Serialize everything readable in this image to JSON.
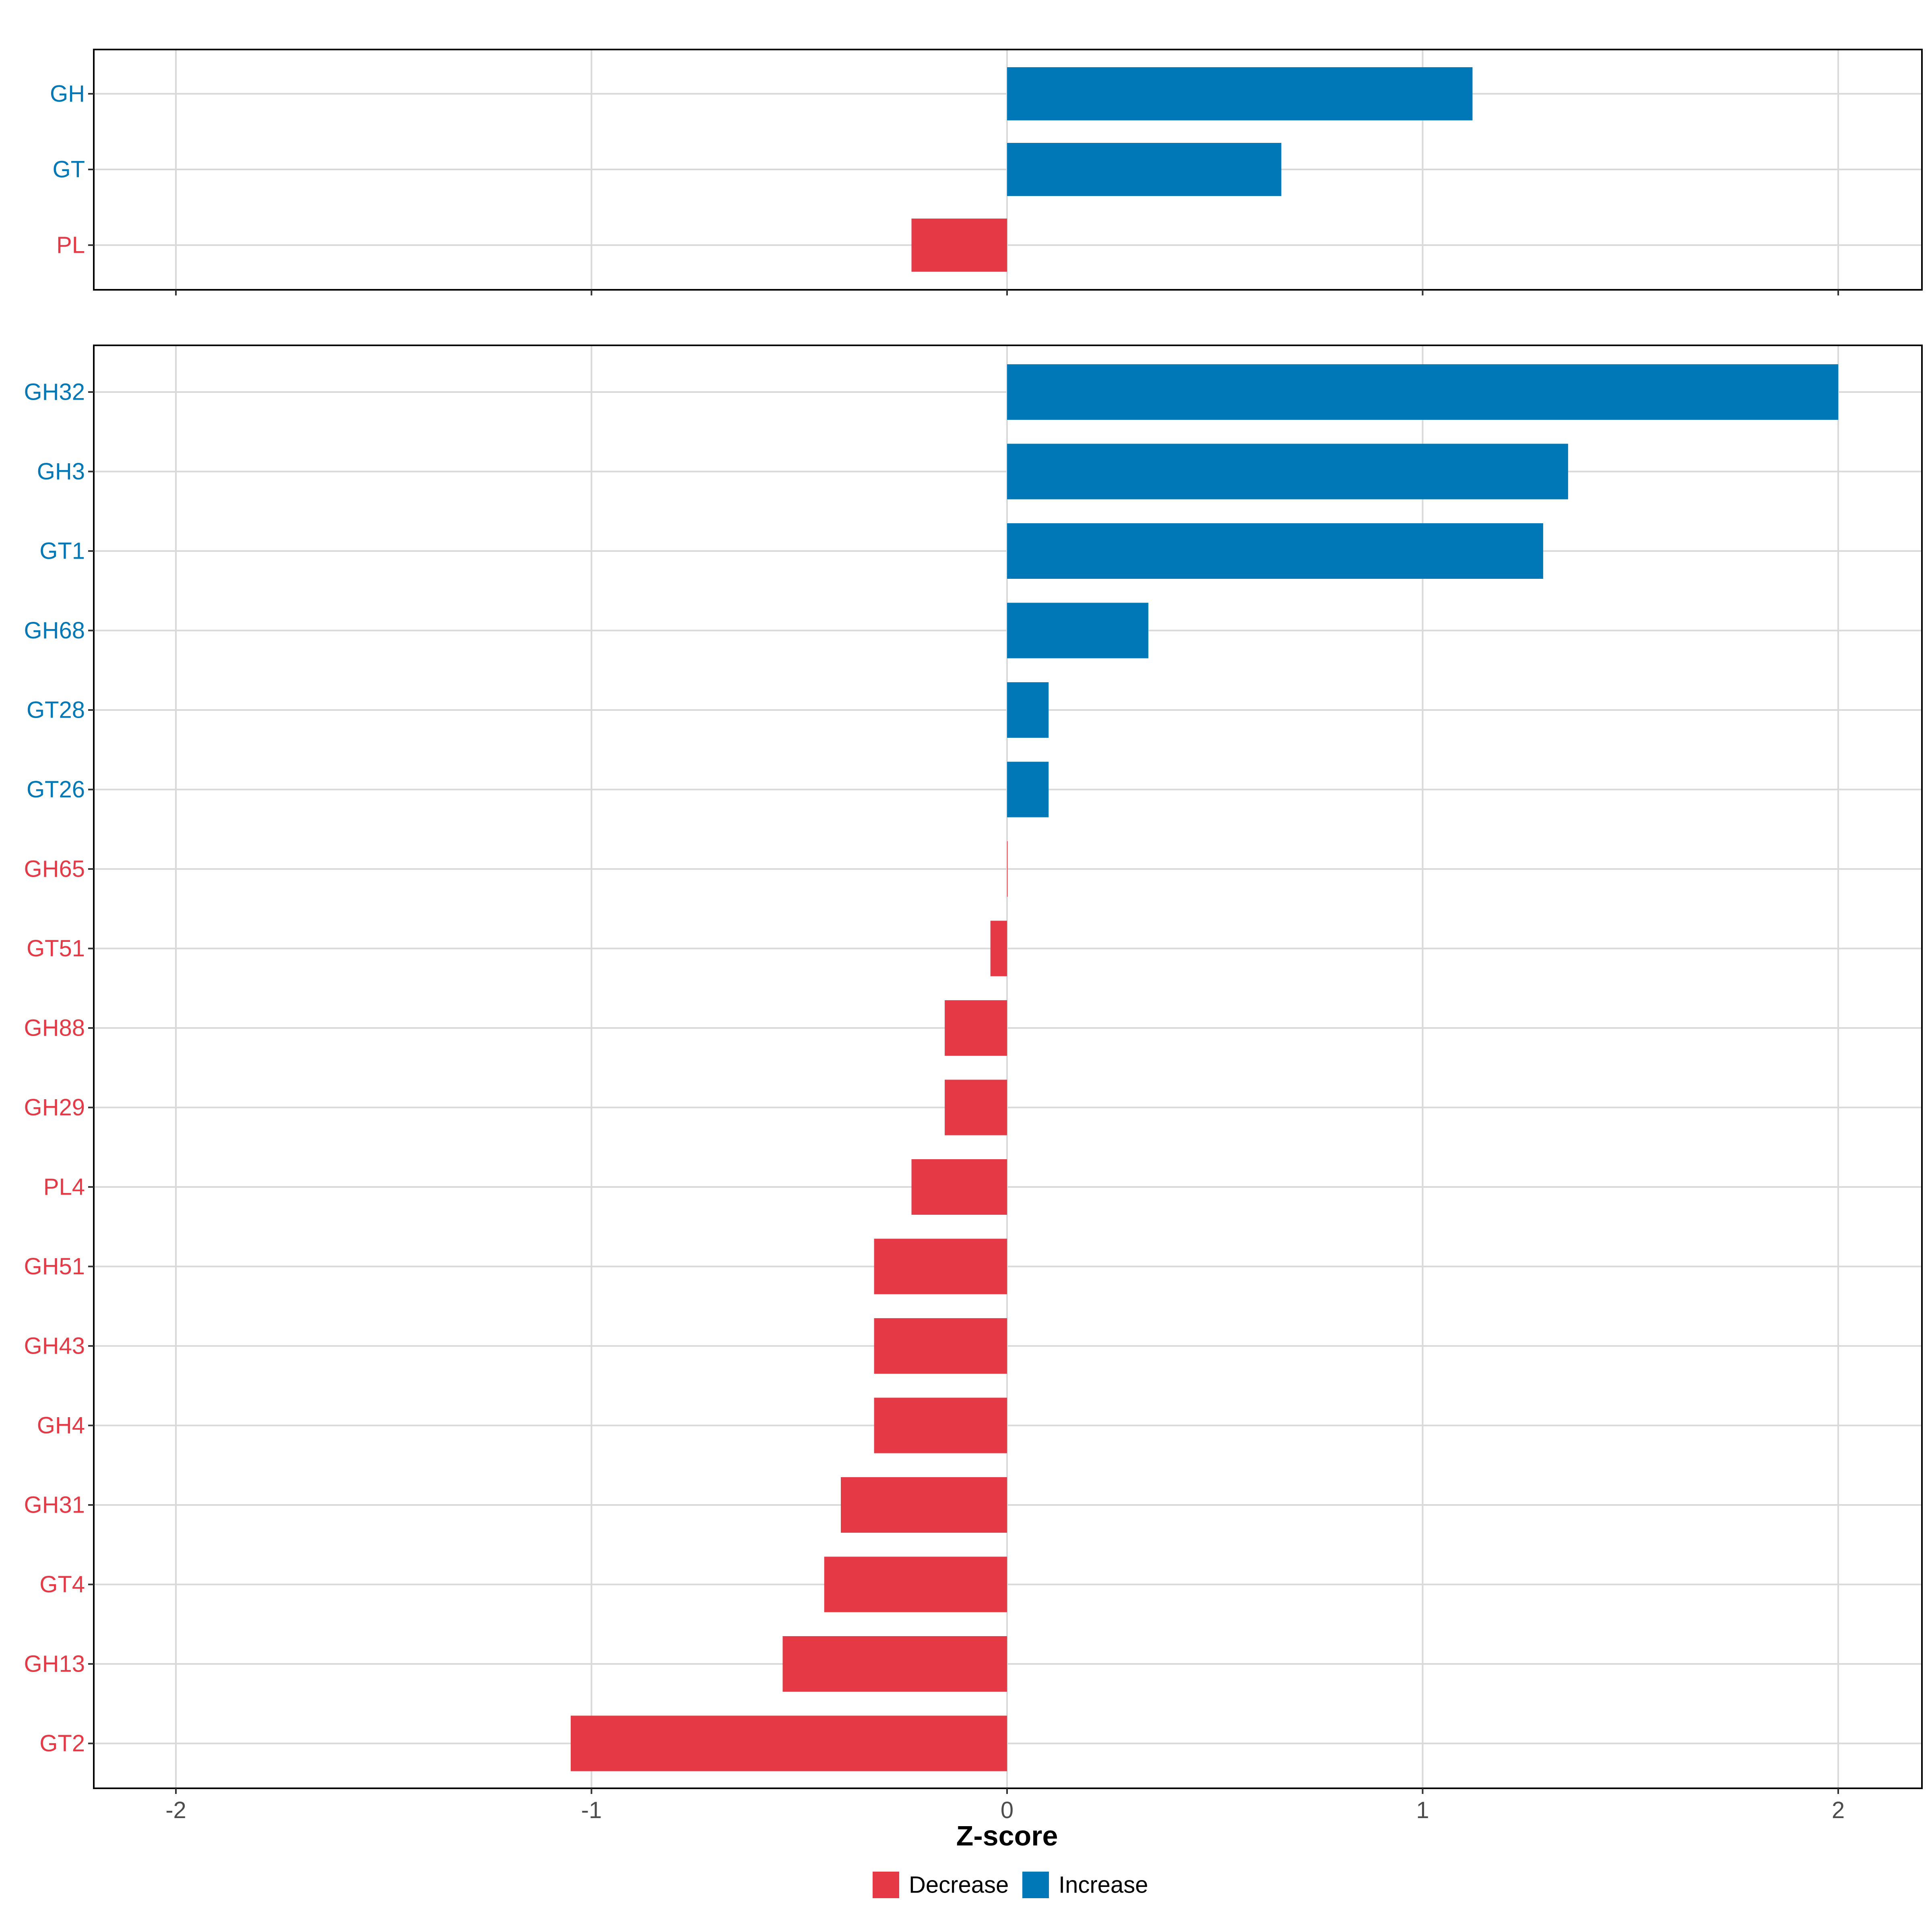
{
  "chart_data": {
    "type": "bar",
    "orientation": "horizontal",
    "xlabel": "Z-score",
    "xlim": [
      -2.2,
      2.2
    ],
    "x_ticks": [
      -2,
      -1,
      0,
      1,
      2
    ],
    "x_tick_labels": [
      "-2",
      "-1",
      "0",
      "1",
      "2"
    ],
    "grid": true,
    "legend_position": "bottom",
    "colors": {
      "Decrease": "#e63946",
      "Increase": "#0077b6"
    },
    "legend": [
      {
        "label": "Decrease",
        "color": "#e63946"
      },
      {
        "label": "Increase",
        "color": "#0077b6"
      }
    ],
    "panels": [
      {
        "name": "top",
        "categories": [
          "GH",
          "GT",
          "PL"
        ],
        "values": [
          1.12,
          0.66,
          -0.23
        ],
        "direction": [
          "Increase",
          "Increase",
          "Decrease"
        ]
      },
      {
        "name": "bottom",
        "categories": [
          "GH32",
          "GH3",
          "GT1",
          "GH68",
          "GT28",
          "GT26",
          "GH65",
          "GT51",
          "GH88",
          "GH29",
          "PL4",
          "GH51",
          "GH43",
          "GH4",
          "GH31",
          "GT4",
          "GH13",
          "GT2"
        ],
        "values": [
          2.0,
          1.35,
          1.29,
          0.34,
          0.1,
          0.1,
          0.0,
          -0.04,
          -0.15,
          -0.15,
          -0.23,
          -0.32,
          -0.32,
          -0.32,
          -0.4,
          -0.44,
          -0.54,
          -1.05
        ],
        "direction": [
          "Increase",
          "Increase",
          "Increase",
          "Increase",
          "Increase",
          "Increase",
          "Decrease",
          "Decrease",
          "Decrease",
          "Decrease",
          "Decrease",
          "Decrease",
          "Decrease",
          "Decrease",
          "Decrease",
          "Decrease",
          "Decrease",
          "Decrease"
        ]
      }
    ]
  }
}
